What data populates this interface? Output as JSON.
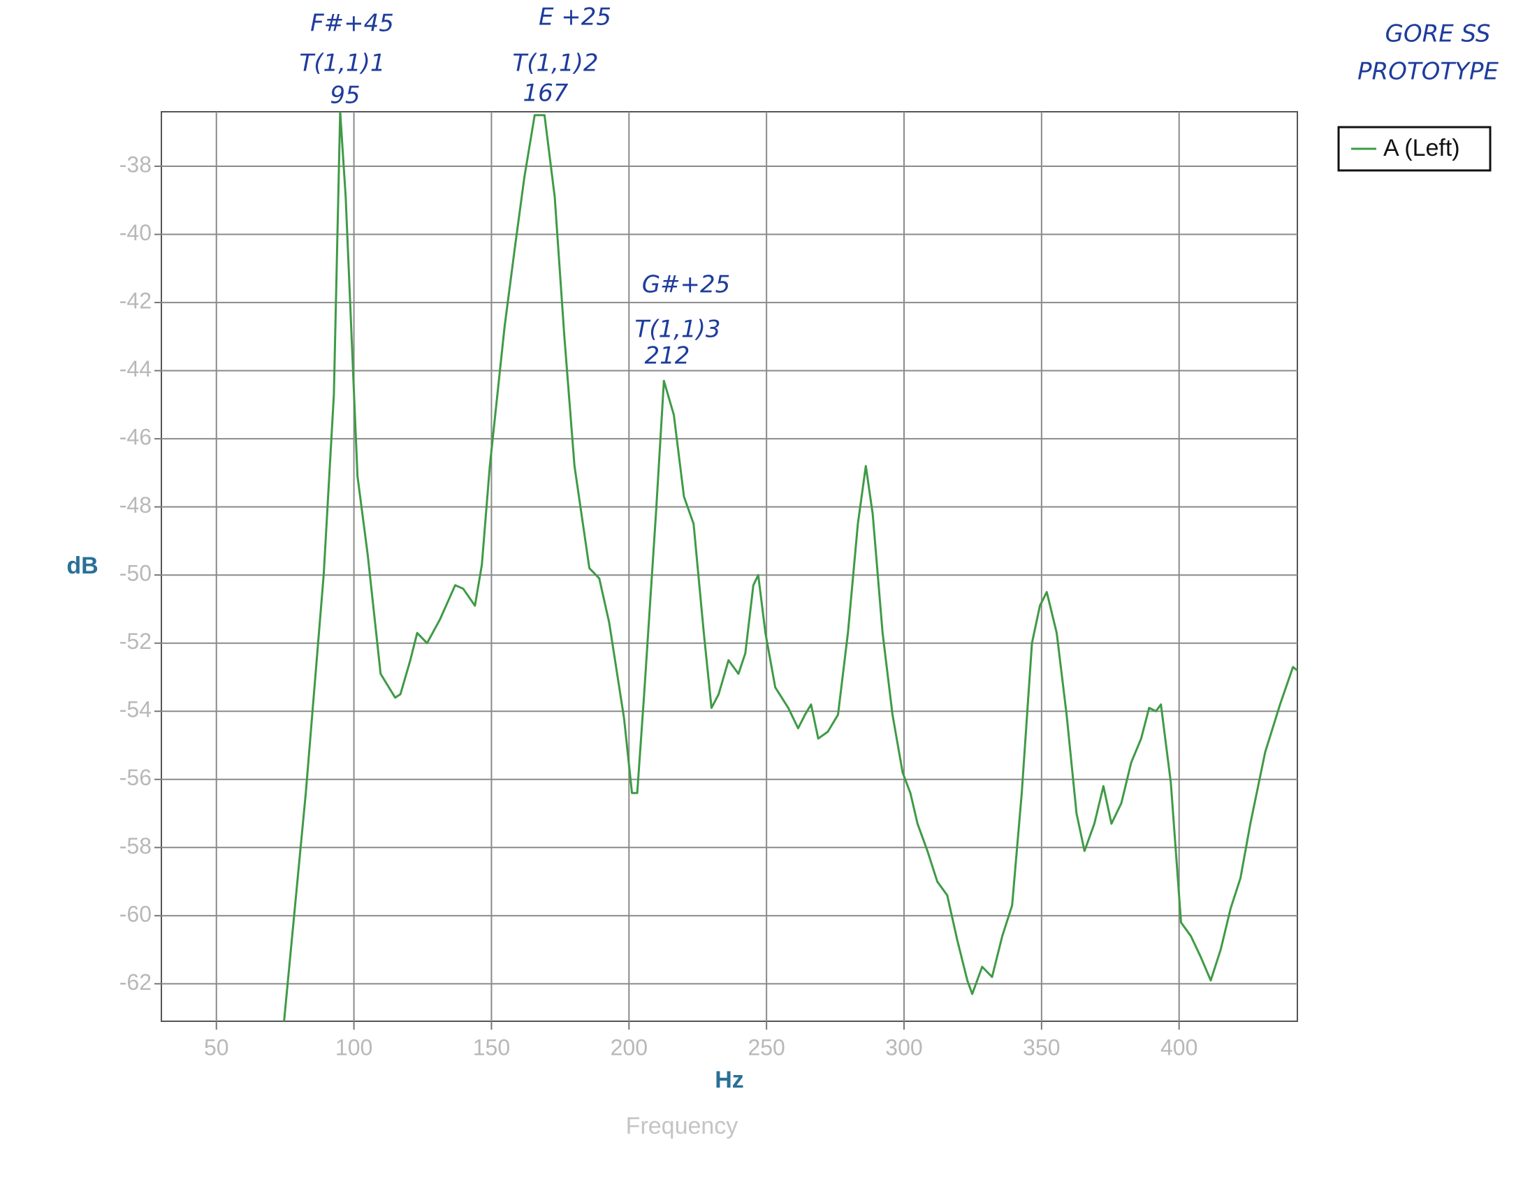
{
  "chart_data": {
    "type": "line",
    "xlabel": "Hz",
    "ylabel": "dB",
    "xlabel_sub": "Frequency",
    "xlim": [
      30,
      443
    ],
    "ylim": [
      -63.1,
      -36.4
    ],
    "xticks": [
      50,
      100,
      150,
      200,
      250,
      300,
      350,
      400
    ],
    "yticks": [
      -38,
      -40,
      -42,
      -44,
      -46,
      -48,
      -50,
      -52,
      -54,
      -56,
      -58,
      -60,
      -62
    ],
    "grid": true,
    "legend": "top-right",
    "annotations": [
      "F#+45",
      "T(1,1)1",
      "95",
      "E +25",
      "T(1,1)2",
      "167",
      "G#+25",
      "T(1,1)3",
      "212",
      "GORE SS",
      "PROTOTYPE"
    ],
    "series": [
      {
        "name": "A (Left)",
        "color": "#3f9a46",
        "x": [
          74.6,
          82.5,
          89,
          92.7,
          95,
          97,
          101.3,
          105,
          109.7,
          115,
          116.9,
          120.5,
          123,
          126.6,
          131.3,
          136.8,
          139.7,
          144,
          146.5,
          149.4,
          154.8,
          158.5,
          162,
          165.7,
          169.3,
          173,
          176.5,
          180.2,
          185.6,
          189.2,
          192.8,
          198.2,
          201.1,
          203,
          205.5,
          209.8,
          212.7,
          216.3,
          220,
          223.5,
          227.2,
          230,
          232.6,
          236.2,
          239.8,
          242.3,
          245.2,
          247,
          249.6,
          253.2,
          257.9,
          261.5,
          264,
          266.2,
          268.8,
          272.3,
          276,
          279.6,
          283.2,
          286.1,
          288.6,
          292.2,
          295.8,
          299.5,
          302.3,
          304.9,
          308.5,
          312.1,
          315.7,
          319.3,
          323,
          324.8,
          328.4,
          332,
          335.7,
          339.3,
          342.8,
          346.5,
          349.4,
          351.9,
          355.5,
          359.1,
          362.7,
          365.6,
          369.2,
          372.5,
          375.4,
          379,
          382.6,
          386.2,
          389.1,
          391.6,
          393.4,
          397,
          400.7,
          404.3,
          407.8,
          411.5,
          415.1,
          418.7,
          422.3,
          425.9,
          431.3,
          436.7,
          441.4,
          443
        ],
        "values": [
          -63.1,
          -56.4,
          -50,
          -44.7,
          -36.4,
          -38.9,
          -47.1,
          -49.4,
          -52.9,
          -53.6,
          -53.5,
          -52.5,
          -51.7,
          -52,
          -51.3,
          -50.3,
          -50.4,
          -50.9,
          -49.7,
          -46.8,
          -42.7,
          -40.4,
          -38.3,
          -36.5,
          -36.5,
          -38.9,
          -43,
          -46.8,
          -49.8,
          -50.1,
          -51.4,
          -54.2,
          -56.4,
          -56.4,
          -53.5,
          -48.2,
          -44.3,
          -45.3,
          -47.7,
          -48.5,
          -51.7,
          -53.9,
          -53.5,
          -52.5,
          -52.9,
          -52.3,
          -50.3,
          -50,
          -51.7,
          -53.3,
          -53.9,
          -54.5,
          -54.1,
          -53.8,
          -54.8,
          -54.6,
          -54.1,
          -51.7,
          -48.5,
          -46.8,
          -48.2,
          -51.7,
          -54.1,
          -55.8,
          -56.4,
          -57.3,
          -58.1,
          -59,
          -59.4,
          -60.7,
          -61.9,
          -62.3,
          -61.5,
          -61.8,
          -60.6,
          -59.7,
          -56.4,
          -52,
          -50.9,
          -50.5,
          -51.7,
          -54.1,
          -57,
          -58.1,
          -57.3,
          -56.2,
          -57.3,
          -56.7,
          -55.5,
          -54.8,
          -53.9,
          -54,
          -53.8,
          -56.1,
          -60.2,
          -60.6,
          -61.2,
          -61.9,
          -61,
          -59.8,
          -58.9,
          -57.3,
          -55.2,
          -53.8,
          -52.7,
          -52.8
        ]
      }
    ]
  }
}
